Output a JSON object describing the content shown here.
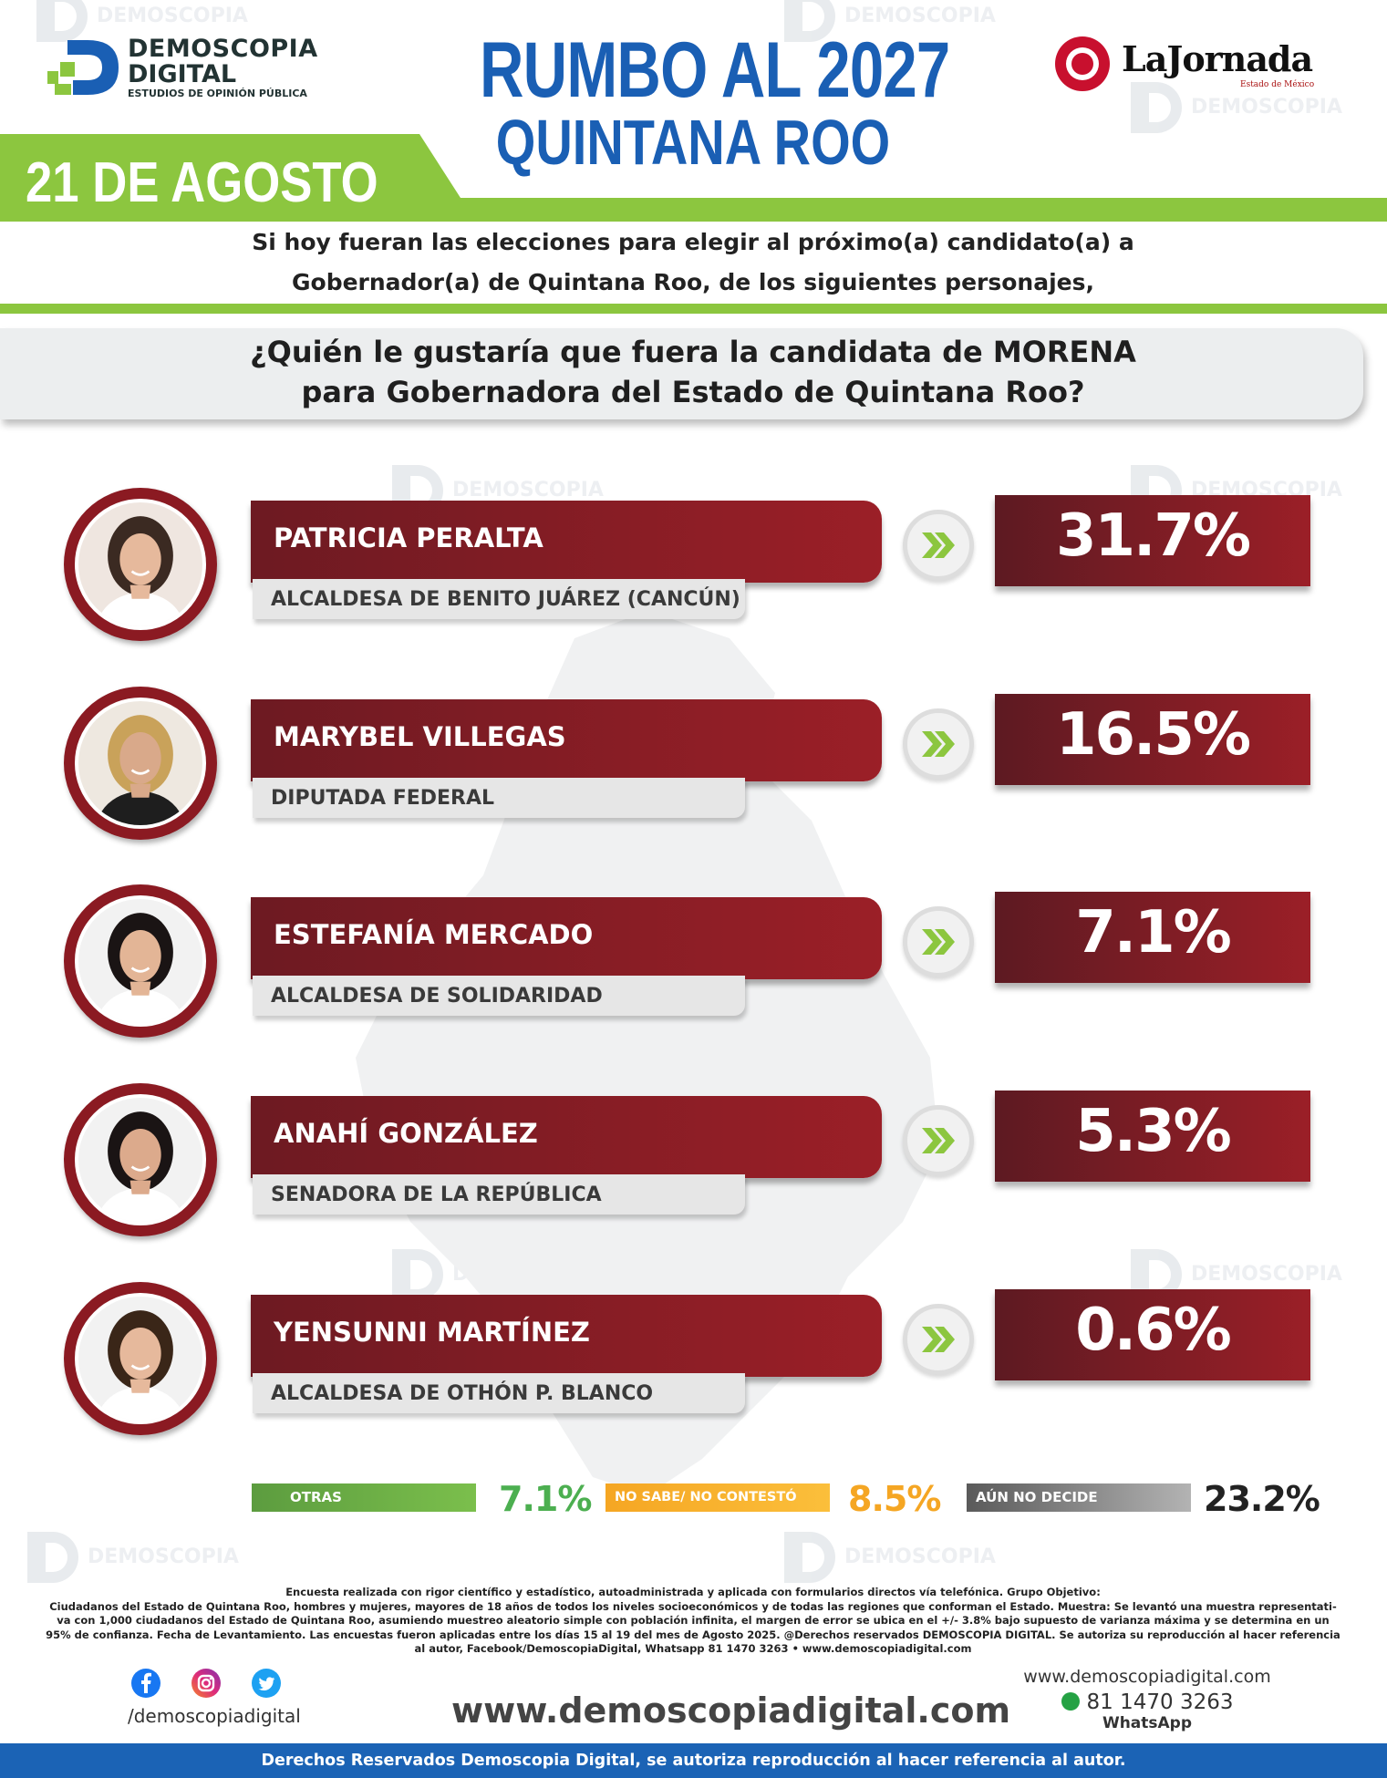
{
  "brand": {
    "logo_line1": "DEMOSCOPIA",
    "logo_line2": "DIGITAL",
    "logo_tagline": "ESTUDIOS DE OPINIÓN PÚBLICA",
    "partner_name": "LaJornada",
    "partner_sub": "Estado de México"
  },
  "header": {
    "title": "RUMBO AL 2027",
    "subtitle": "QUINTANA ROO",
    "date": "21 DE AGOSTO",
    "intro_line1": "Si hoy fueran las elecciones para elegir al próximo(a) candidato(a) a",
    "intro_line2": "Gobernador(a) de Quintana Roo, de los siguientes personajes,",
    "question_line1": "¿Quién le gustaría que fuera la candidata de MORENA",
    "question_line2": "para Gobernadora del Estado de Quintana Roo?"
  },
  "colors": {
    "title_blue": "#1a5fb4",
    "accent_green": "#8cc63f",
    "bar_red": "#9b1f27",
    "otras_green": "#6aa84f",
    "nosabe_orange": "#f6a623",
    "aun_gray": "#808080"
  },
  "chart_data": {
    "type": "bar",
    "categories": [
      "PATRICIA PERALTA",
      "MARYBEL VILLEGAS",
      "ESTEFANÍA MERCADO",
      "ANAHÍ GONZÁLEZ",
      "YENSUNNI MARTÍNEZ"
    ],
    "values": [
      31.7,
      16.5,
      7.1,
      5.3,
      0.6
    ],
    "unit": "%",
    "candidates": [
      {
        "name": "PATRICIA PERALTA",
        "role": "ALCALDESA DE BENITO JUÁREZ (CANCÚN)",
        "value": 31.7,
        "label": "31.7%"
      },
      {
        "name": "MARYBEL VILLEGAS",
        "role": "DIPUTADA FEDERAL",
        "value": 16.5,
        "label": "16.5%"
      },
      {
        "name": "ESTEFANÍA MERCADO",
        "role": "ALCALDESA DE SOLIDARIDAD",
        "value": 7.1,
        "label": "7.1%"
      },
      {
        "name": "ANAHÍ GONZÁLEZ",
        "role": "SENADORA DE LA REPÚBLICA",
        "value": 5.3,
        "label": "5.3%"
      },
      {
        "name": "YENSUNNI MARTÍNEZ",
        "role": "ALCALDESA DE OTHÓN P. BLANCO",
        "value": 0.6,
        "label": "0.6%"
      }
    ],
    "other_responses": [
      {
        "label": "OTRAS",
        "value": 7.1,
        "display": "7.1%"
      },
      {
        "label": "NO SABE/ NO CONTESTÓ",
        "value": 8.5,
        "display": "8.5%"
      },
      {
        "label": "AÚN NO DECIDE",
        "value": 23.2,
        "display": "23.2%"
      }
    ]
  },
  "methodology": {
    "line1": "Encuesta realizada con rigor científico y estadístico, autoadministrada y aplicada con formularios directos vía telefónica. Grupo Objetivo:",
    "line2": "Ciudadanos del Estado de Quintana Roo, hombres y mujeres, mayores de 18 años de todos los niveles socioeconómicos y de todas las regiones que conforman el Estado. Muestra: Se levantó una muestra representati-",
    "line3": "va con 1,000 ciudadanos del Estado de Quintana Roo, asumiendo muestreo aleatorio simple con población infinita, el margen de error se ubica en el +/- 3.8% bajo supuesto de varianza máxima y se determina en un",
    "line4": "95% de confianza. Fecha de Levantamiento. Las encuestas fueron aplicadas entre los días 15 al 19 del mes de Agosto 2025. @Derechos reservados DEMOSCOPIA DIGITAL. Se autoriza su reproducción al hacer referencia",
    "line5": "al autor, Facebook/DemoscopiaDigital, Whatsapp 81 1470 3263 • www.demoscopiadigital.com"
  },
  "social": {
    "handle": "/demoscopiadigital",
    "icons": [
      "facebook-icon",
      "instagram-icon",
      "twitter-icon"
    ]
  },
  "contact": {
    "website_big": "www.demoscopiadigital.com",
    "website": "www.demoscopiadigital.com",
    "phone": "81 1470 3263",
    "whatsapp_label": "WhatsApp"
  },
  "footer": {
    "text": "Derechos Reservados Demoscopia Digital, se autoriza reproducción al hacer referencia al autor."
  }
}
